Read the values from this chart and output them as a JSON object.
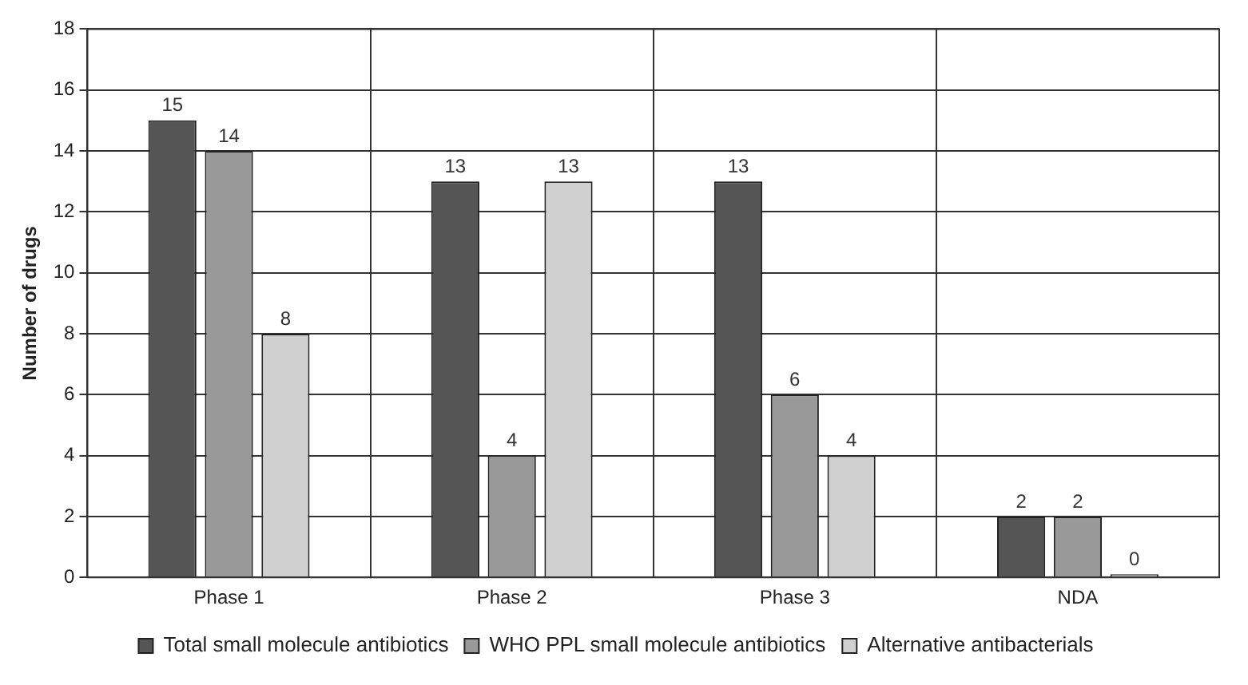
{
  "chart_data": {
    "type": "bar",
    "ylabel": "Number of drugs",
    "categories": [
      "Phase 1",
      "Phase 2",
      "Phase 3",
      "NDA"
    ],
    "series": [
      {
        "name": "Total small molecule antibiotics",
        "color": "#555555",
        "values": [
          15,
          13,
          13,
          2
        ]
      },
      {
        "name": "WHO PPL small molecule antibiotics",
        "color": "#999999",
        "values": [
          14,
          4,
          6,
          2
        ]
      },
      {
        "name": "Alternative antibacterials",
        "color": "#d0d0d0",
        "values": [
          8,
          13,
          4,
          0
        ]
      }
    ],
    "ylim": [
      0,
      18
    ],
    "yticks": [
      0,
      2,
      4,
      6,
      8,
      10,
      12,
      14,
      16,
      18
    ],
    "grid": true,
    "legend": "bottom",
    "data_labels": true
  }
}
